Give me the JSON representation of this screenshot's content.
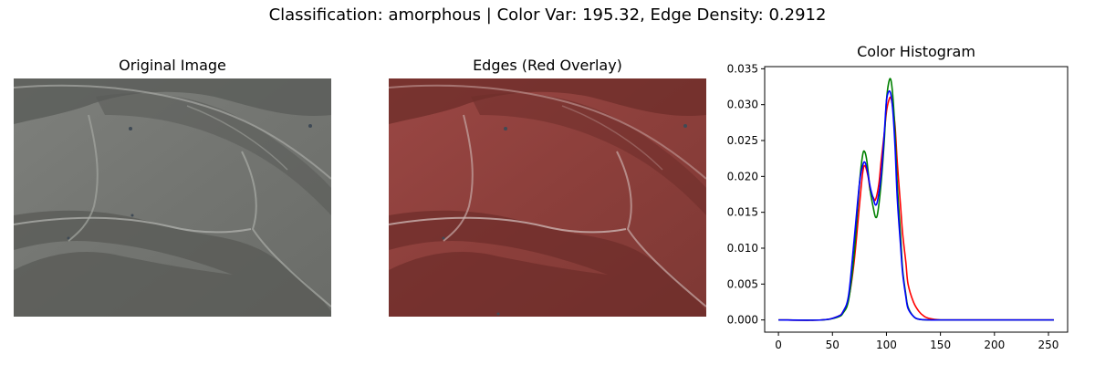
{
  "figure": {
    "suptitle": "Classification: amorphous | Color Var: 195.32, Edge Density: 0.2912"
  },
  "panels": {
    "original": {
      "title": "Original Image"
    },
    "edges": {
      "title": "Edges (Red Overlay)"
    },
    "histogram": {
      "title": "Color Histogram"
    }
  },
  "colors": {
    "red": "#ff0000",
    "green": "#008000",
    "blue": "#0000ff",
    "image_base": "#6f716c",
    "overlay_base": "#8a3a36"
  },
  "chart_data": {
    "type": "line",
    "title": "Color Histogram",
    "xlabel": "",
    "ylabel": "",
    "xlim": [
      -12.75,
      267.75
    ],
    "ylim": [
      -0.0017,
      0.0353
    ],
    "x_ticks": [
      0,
      50,
      100,
      150,
      200,
      250
    ],
    "x_tick_labels": [
      "0",
      "50",
      "100",
      "150",
      "200",
      "250"
    ],
    "y_ticks": [
      0.0,
      0.005,
      0.01,
      0.015,
      0.02,
      0.025,
      0.03,
      0.035
    ],
    "y_tick_labels": [
      "0.000",
      "0.005",
      "0.010",
      "0.015",
      "0.020",
      "0.025",
      "0.030",
      "0.035"
    ],
    "grid": false,
    "legend": null,
    "series": [
      {
        "color": "red",
        "x": [
          0,
          40,
          55,
          60,
          65,
          70,
          75,
          78,
          80,
          83,
          85,
          88,
          90,
          93,
          95,
          98,
          100,
          102,
          104,
          106,
          108,
          110,
          113,
          115,
          118,
          120,
          125,
          130,
          135,
          140,
          150,
          160,
          200,
          255
        ],
        "y": [
          0,
          0,
          0.0005,
          0.0012,
          0.003,
          0.008,
          0.016,
          0.0205,
          0.0215,
          0.02,
          0.018,
          0.017,
          0.0168,
          0.019,
          0.022,
          0.026,
          0.029,
          0.0305,
          0.031,
          0.0295,
          0.027,
          0.022,
          0.016,
          0.012,
          0.008,
          0.005,
          0.0025,
          0.0012,
          0.0005,
          0.0002,
          0,
          0,
          0,
          0
        ]
      },
      {
        "color": "green",
        "x": [
          0,
          40,
          55,
          60,
          65,
          70,
          75,
          78,
          80,
          82,
          85,
          88,
          90,
          92,
          95,
          98,
          100,
          102,
          104,
          106,
          108,
          110,
          113,
          115,
          118,
          120,
          125,
          130,
          140,
          150,
          200,
          255
        ],
        "y": [
          0,
          0,
          0.0004,
          0.001,
          0.0028,
          0.009,
          0.019,
          0.023,
          0.0234,
          0.022,
          0.018,
          0.0155,
          0.0143,
          0.015,
          0.019,
          0.025,
          0.0305,
          0.033,
          0.0335,
          0.031,
          0.026,
          0.019,
          0.012,
          0.007,
          0.0035,
          0.0018,
          0.0005,
          0.0001,
          0,
          0,
          0,
          0
        ]
      },
      {
        "color": "blue",
        "x": [
          0,
          40,
          55,
          60,
          65,
          70,
          75,
          78,
          80,
          82,
          85,
          88,
          90,
          92,
          95,
          98,
          100,
          102,
          104,
          106,
          108,
          110,
          113,
          115,
          118,
          120,
          125,
          130,
          140,
          150,
          200,
          255
        ],
        "y": [
          0,
          0,
          0.0005,
          0.0012,
          0.0035,
          0.011,
          0.019,
          0.0215,
          0.022,
          0.021,
          0.0185,
          0.0168,
          0.016,
          0.0168,
          0.02,
          0.026,
          0.0305,
          0.0318,
          0.0315,
          0.029,
          0.024,
          0.017,
          0.0105,
          0.0065,
          0.0032,
          0.0016,
          0.0005,
          0.0001,
          0,
          0,
          0,
          0
        ]
      }
    ]
  }
}
